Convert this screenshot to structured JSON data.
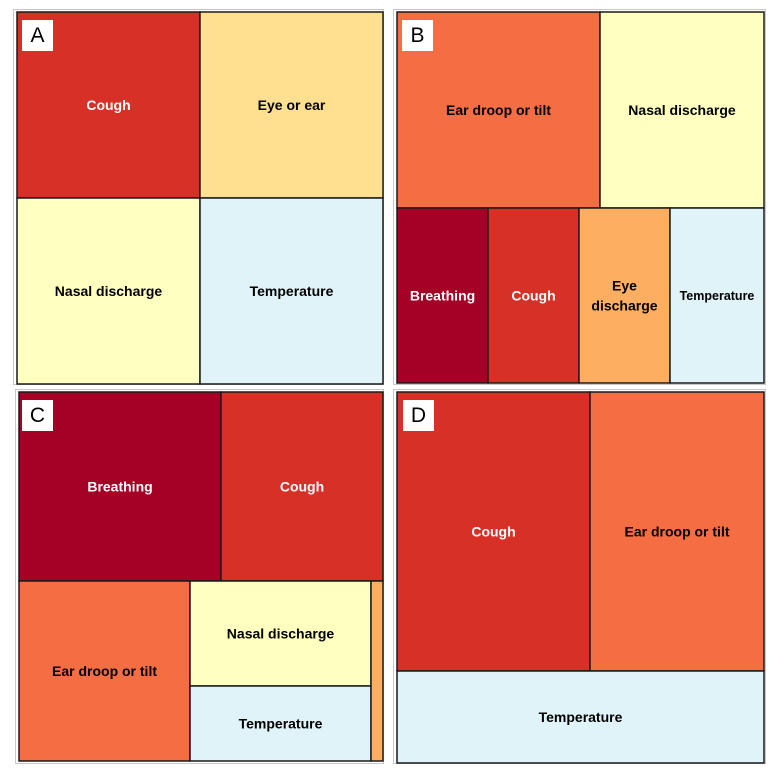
{
  "chart_data": [
    {
      "type": "treemap",
      "panel_label": "A",
      "tiles": [
        {
          "label": "Cough",
          "value": 25,
          "color": "#d73027"
        },
        {
          "label": "Eye or ear",
          "value": 25,
          "color": "#fee090"
        },
        {
          "label": "Nasal discharge",
          "value": 25,
          "color": "#ffffbf"
        },
        {
          "label": "Temperature",
          "value": 25,
          "color": "#e0f3f8"
        }
      ]
    },
    {
      "type": "treemap",
      "panel_label": "B",
      "tiles": [
        {
          "label": "Ear droop or tilt",
          "value": 29,
          "color": "#f46d43"
        },
        {
          "label": "Nasal discharge",
          "value": 25,
          "color": "#ffffbf"
        },
        {
          "label": "Breathing",
          "value": 11.5,
          "color": "#a50026"
        },
        {
          "label": "Cough",
          "value": 11.5,
          "color": "#d73027"
        },
        {
          "label": "Eye discharge",
          "value": 11.5,
          "color": "#fdae61"
        },
        {
          "label": "Temperature",
          "value": 11.5,
          "color": "#e0f3f8"
        }
      ]
    },
    {
      "type": "treemap",
      "panel_label": "C",
      "tiles": [
        {
          "label": "Breathing",
          "value": 28.5,
          "color": "#a50026"
        },
        {
          "label": "Cough",
          "value": 22,
          "color": "#d73027"
        },
        {
          "label": "Ear droop or tilt",
          "value": 24.5,
          "color": "#f46d43"
        },
        {
          "label": "Nasal discharge",
          "value": 13,
          "color": "#ffffbf"
        },
        {
          "label": "Temperature",
          "value": 9.5,
          "color": "#e0f3f8"
        },
        {
          "label": "",
          "value": 1.5,
          "color": "#fdae61"
        }
      ]
    },
    {
      "type": "treemap",
      "panel_label": "D",
      "tiles": [
        {
          "label": "Cough",
          "value": 37.5,
          "color": "#d73027"
        },
        {
          "label": "Ear droop or tilt",
          "value": 37.5,
          "color": "#f46d43"
        },
        {
          "label": "Temperature",
          "value": 25,
          "color": "#e0f3f8"
        }
      ]
    }
  ]
}
